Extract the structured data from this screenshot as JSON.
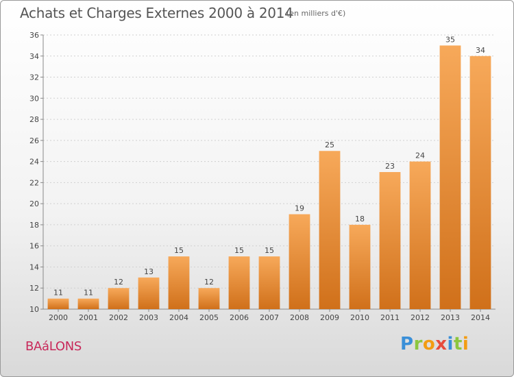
{
  "header": {
    "title": "Achats et Charges Externes 2000 à 2014",
    "subtitle": "(en milliers d'€)"
  },
  "footer": {
    "town": "BAáLONS",
    "logo_letters": [
      "P",
      "r",
      "o",
      "x",
      "i",
      "t",
      "i"
    ],
    "logo_colors": [
      "#3a8fd8",
      "#8cc63f",
      "#f39c12",
      "#e74c3c",
      "#3a8fd8",
      "#8cc63f",
      "#f39c12"
    ]
  },
  "colors": {
    "bar_light": "#f7a95a",
    "bar_dark": "#d0701a",
    "axis": "#888888",
    "grid": "#d0d0d0"
  },
  "chart_data": {
    "type": "bar",
    "title": "Achats et Charges Externes 2000 à 2014",
    "subtitle": "(en milliers d'€)",
    "categories": [
      "2000",
      "2001",
      "2002",
      "2003",
      "2004",
      "2005",
      "2006",
      "2007",
      "2008",
      "2009",
      "2010",
      "2011",
      "2012",
      "2013",
      "2014"
    ],
    "values": [
      11,
      11,
      12,
      13,
      15,
      12,
      15,
      15,
      19,
      25,
      18,
      23,
      24,
      35,
      34
    ],
    "ylim": [
      10,
      36
    ],
    "yticks": [
      10,
      12,
      14,
      16,
      18,
      20,
      22,
      24,
      26,
      28,
      30,
      32,
      34,
      36
    ],
    "grid": true,
    "legend": "none"
  }
}
